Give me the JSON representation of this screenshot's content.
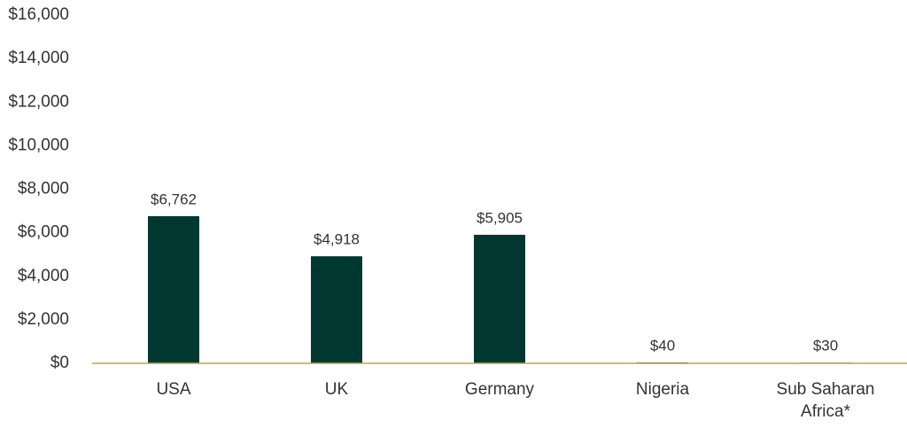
{
  "chart_data": {
    "type": "bar",
    "categories": [
      "USA",
      "UK",
      "Germany",
      "Nigeria",
      "Sub Saharan Africa*"
    ],
    "values": [
      6762,
      4918,
      5905,
      40,
      30
    ],
    "value_labels": [
      "$6,762",
      "$4,918",
      "$5,905",
      "$40",
      "$30"
    ],
    "color": "#003831",
    "ylim": [
      0,
      16000
    ],
    "yticks": [
      {
        "value": 0,
        "label": "$0"
      },
      {
        "value": 2000,
        "label": "$2,000"
      },
      {
        "value": 4000,
        "label": "$4,000"
      },
      {
        "value": 6000,
        "label": "$6,000"
      },
      {
        "value": 8000,
        "label": "$8,000"
      },
      {
        "value": 10000,
        "label": "$10,000"
      },
      {
        "value": 12000,
        "label": "$12,000"
      },
      {
        "value": 14000,
        "label": "$14,000"
      },
      {
        "value": 16000,
        "label": "$16,000"
      }
    ],
    "grid": false
  }
}
